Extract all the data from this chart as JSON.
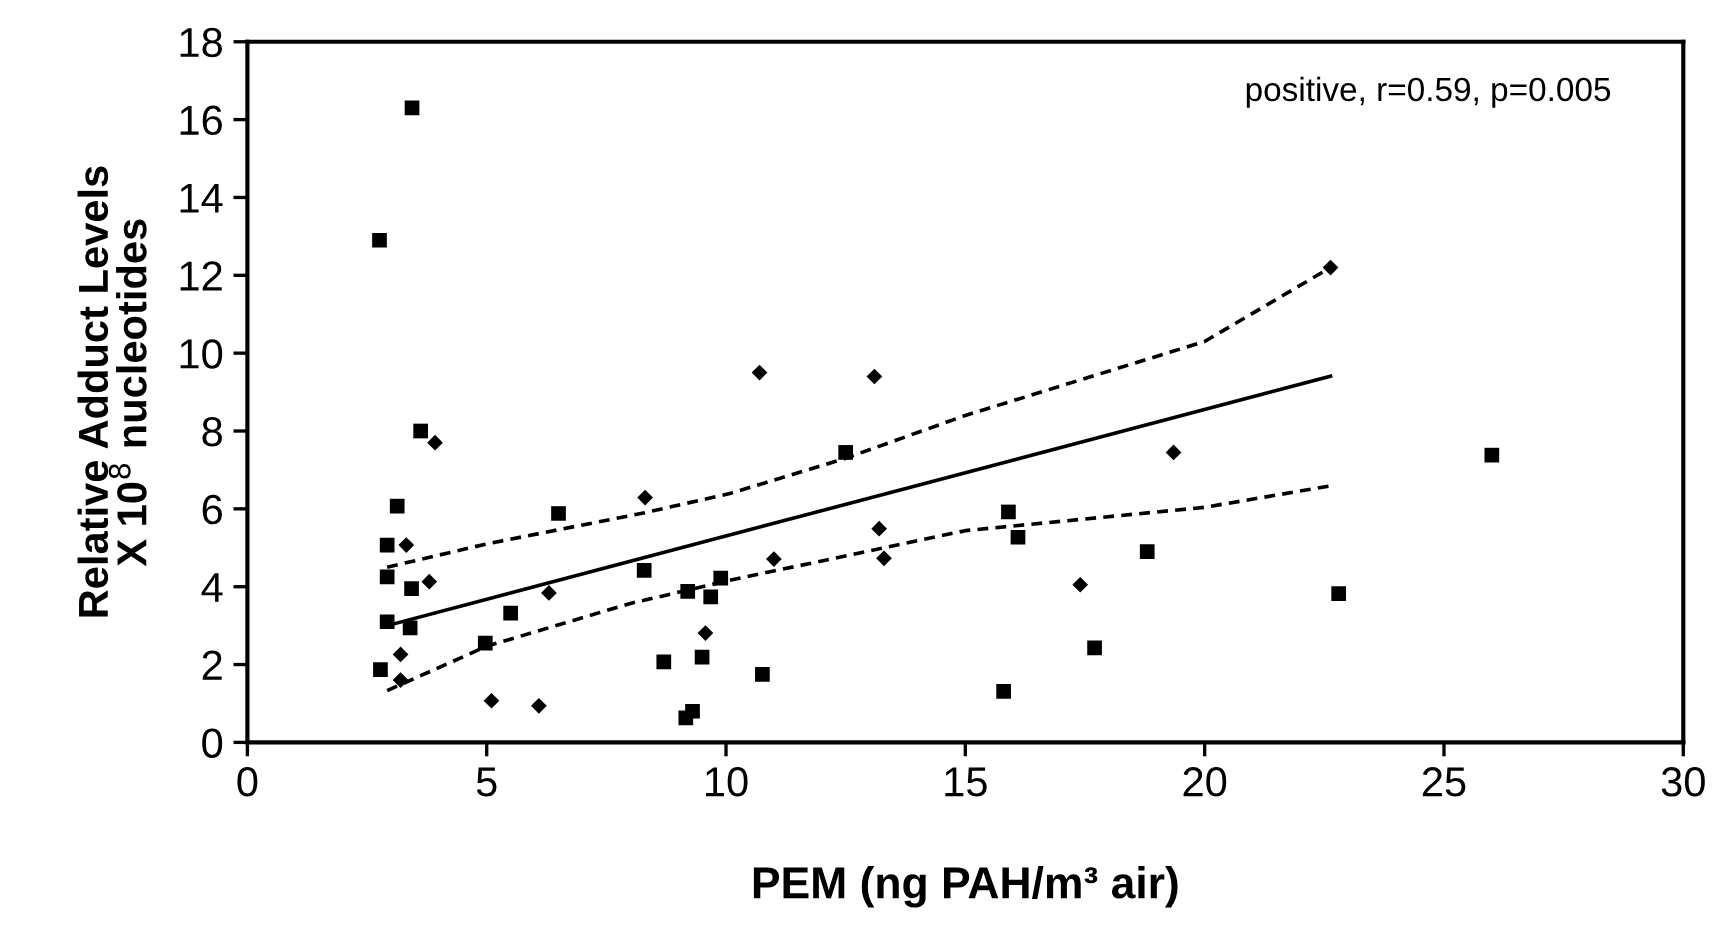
{
  "chart_data": {
    "type": "scatter",
    "xlabel": "PEM (ng PAH/m³ air)",
    "ylabel": "Relative Adduct Levels\nX 10$^{8}$ nucleotides",
    "annotations": [
      "positive, r=0.59, p=0.005"
    ],
    "xlim": [
      0,
      30
    ],
    "xticks": [
      0,
      5,
      10,
      15,
      20,
      25,
      30
    ],
    "ylim": [
      0,
      18
    ],
    "yticks": [
      0,
      2,
      4,
      6,
      8,
      10,
      12,
      14,
      16,
      18
    ],
    "grid": false,
    "series": [
      {
        "marker": "square",
        "color": "#000000",
        "x": [
          2.92,
          3.13,
          2.92,
          2.92,
          2.78,
          3.43,
          3.4,
          4.97,
          5.5,
          6.5,
          8.29,
          8.7,
          9.2,
          9.5,
          9.68,
          9.89,
          9.16,
          9.3,
          3.44,
          2.76,
          3.62,
          12.5,
          15.9,
          16.1,
          18.8,
          17.7,
          10.76,
          15.8,
          26.0,
          22.8
        ],
        "values": [
          5.07,
          6.07,
          4.25,
          3.1,
          1.87,
          3.95,
          2.94,
          2.55,
          3.32,
          5.88,
          4.42,
          2.07,
          3.88,
          2.19,
          3.74,
          4.22,
          0.63,
          0.8,
          16.3,
          12.9,
          8.0,
          7.45,
          5.92,
          5.27,
          4.9,
          2.43,
          1.75,
          1.31,
          7.38,
          3.82
        ]
      },
      {
        "marker": "diamond",
        "color": "#000000",
        "x": [
          3.32,
          3.8,
          3.2,
          3.2,
          5.1,
          6.09,
          6.3,
          8.31,
          9.57,
          3.92,
          10.7,
          13.1,
          13.2,
          13.3,
          11.0,
          17.4,
          19.35,
          22.63
        ],
        "values": [
          5.07,
          4.13,
          2.26,
          1.6,
          1.07,
          0.94,
          3.84,
          6.29,
          2.81,
          7.7,
          9.5,
          9.4,
          5.49,
          4.73,
          4.71,
          4.05,
          7.45,
          12.2
        ]
      },
      {
        "type": "line",
        "marker": "none",
        "line_style": "solid",
        "color": "#000000",
        "x": [
          2.92,
          22.63
        ],
        "values": [
          3.0,
          9.41
        ]
      },
      {
        "type": "line",
        "marker": "none",
        "line_style": "dashed",
        "color": "#000000",
        "x": [
          2.92,
          5,
          8.3,
          10.1,
          12.5,
          15,
          20,
          22.63
        ],
        "values": [
          4.5,
          5.1,
          5.9,
          6.4,
          7.3,
          8.4,
          10.3,
          12.2
        ]
      },
      {
        "type": "line",
        "marker": "none",
        "line_style": "dashed",
        "color": "#000000",
        "x": [
          2.92,
          5,
          8,
          10.1,
          15,
          20,
          22.63
        ],
        "values": [
          1.33,
          2.47,
          3.57,
          4.17,
          5.44,
          6.04,
          6.59
        ]
      }
    ]
  }
}
